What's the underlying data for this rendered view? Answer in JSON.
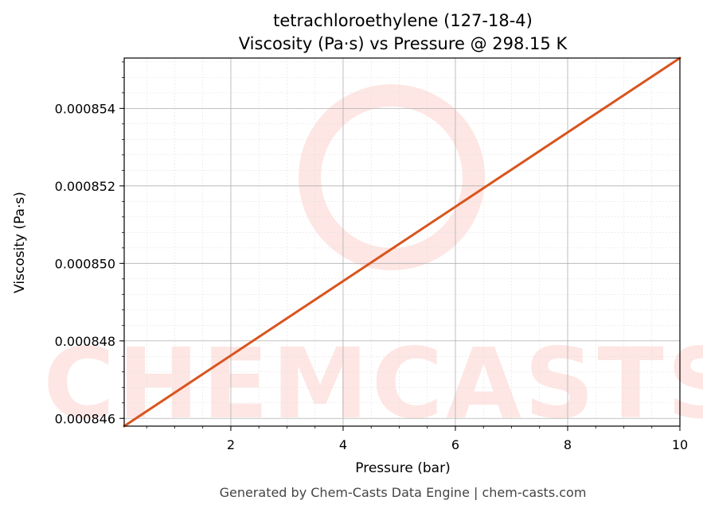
{
  "chart_data": {
    "type": "line",
    "title": "tetrachloroethylene (127-18-4)",
    "subtitle": "Viscosity (Pa·s) vs Pressure @ 298.15 K",
    "xlabel": "Pressure (bar)",
    "ylabel": "Viscosity (Pa·s)",
    "xlim": [
      0.1,
      10
    ],
    "ylim": [
      0.0008458,
      0.0008553
    ],
    "x_ticks": [
      2,
      4,
      6,
      8,
      10
    ],
    "y_ticks": [
      0.000846,
      0.000848,
      0.00085,
      0.000852,
      0.000854
    ],
    "x_tick_labels": [
      "2",
      "4",
      "6",
      "8",
      "10"
    ],
    "y_tick_labels": [
      "0.000846",
      "0.000848",
      "0.000850",
      "0.000852",
      "0.000854"
    ],
    "grid": true,
    "minor_grid": true,
    "series": [
      {
        "color": "#d9541e",
        "x": [
          0.1,
          10
        ],
        "y": [
          0.0008458,
          0.0008553
        ]
      }
    ]
  },
  "watermark": {
    "text": "CHEMCASTS",
    "color": "#fde6e3"
  },
  "footer": "Generated by Chem-Casts Data Engine | chem-casts.com"
}
